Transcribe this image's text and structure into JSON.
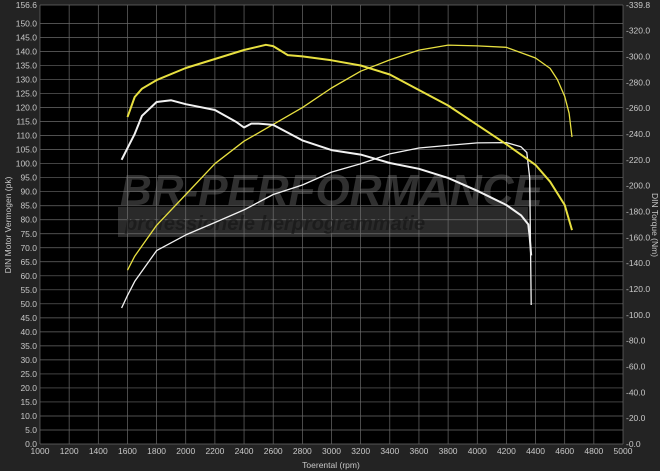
{
  "chart_data": {
    "type": "line",
    "xlabel": "Toerental (rpm)",
    "ylabel": "DIN Motor Vermogen (pk)",
    "y2label": "DIN Torque (Nm)",
    "xlim": [
      1000,
      5000
    ],
    "ylim": [
      0,
      156.6
    ],
    "y2lim": [
      0,
      339.8
    ],
    "xticks": [
      1000,
      1200,
      1400,
      1600,
      1800,
      2000,
      2200,
      2400,
      2600,
      2800,
      3000,
      3200,
      3400,
      3600,
      3800,
      4000,
      4200,
      4400,
      4600,
      4800,
      5000
    ],
    "yticks": [
      "0.0",
      "5.0",
      "10.0",
      "15.0",
      "20.0",
      "25.0",
      "30.0",
      "35.0",
      "40.0",
      "45.0",
      "50.0",
      "55.0",
      "60.0",
      "65.0",
      "70.0",
      "75.0",
      "80.0",
      "85.0",
      "90.0",
      "95.0",
      "100.0",
      "105.0",
      "110.0",
      "115.0",
      "120.0",
      "125.0",
      "130.0",
      "135.0",
      "140.0",
      "145.0",
      "150.0",
      "156.6"
    ],
    "y2ticks": [
      "0.0",
      "20.0",
      "40.0",
      "60.0",
      "80.0",
      "100.0",
      "120.0",
      "140.0",
      "160.0",
      "180.0",
      "200.0",
      "220.0",
      "240.0",
      "260.0",
      "280.0",
      "300.0",
      "320.0",
      "339.8"
    ],
    "grid": true,
    "colors": {
      "tuned": "#e8e040",
      "stock": "#f2f2f2",
      "plot_bg": "#000000",
      "outer_bg": "#232323"
    },
    "series": [
      {
        "axis": "left",
        "color": "#e8e040",
        "x": [
          1600,
          1650,
          1800,
          2000,
          2200,
          2400,
          2600,
          2800,
          3000,
          3200,
          3400,
          3600,
          3800,
          4000,
          4200,
          4400,
          4500,
          4550,
          4600,
          4630,
          4650
        ],
        "y": [
          62,
          67,
          78,
          89,
          100,
          108,
          114,
          120,
          127,
          133,
          137,
          140.5,
          142.3,
          142,
          141.5,
          137.7,
          134,
          130,
          124,
          118,
          109.5
        ]
      },
      {
        "axis": "left",
        "color": "#f2f2f2",
        "x": [
          1560,
          1600,
          1650,
          1800,
          2000,
          2200,
          2400,
          2600,
          2800,
          3000,
          3200,
          3400,
          3600,
          3800,
          4000,
          4200,
          4300,
          4340,
          4360,
          4370
        ],
        "y": [
          48.5,
          53,
          58,
          69,
          74.6,
          79,
          83.5,
          89,
          92.4,
          97,
          100,
          103.5,
          105.6,
          106.5,
          107.4,
          107.5,
          106,
          104,
          95,
          49.6
        ]
      },
      {
        "axis": "right",
        "color": "#e8e040",
        "x": [
          1600,
          1650,
          1700,
          1800,
          2000,
          2200,
          2400,
          2550,
          2600,
          2700,
          2800,
          3000,
          3200,
          3400,
          3600,
          3800,
          4000,
          4200,
          4400,
          4500,
          4600,
          4650
        ],
        "y": [
          253,
          268.6,
          275,
          281.7,
          291,
          298,
          305,
          309,
          308,
          301,
          300,
          297,
          293,
          286,
          274,
          262,
          247,
          232,
          216,
          203,
          185,
          165.6
        ]
      },
      {
        "axis": "right",
        "color": "#f2f2f2",
        "x": [
          1560,
          1600,
          1650,
          1700,
          1800,
          1900,
          2000,
          2200,
          2350,
          2400,
          2450,
          2500,
          2600,
          2800,
          3000,
          3200,
          3400,
          3600,
          3800,
          4000,
          4200,
          4300,
          4350,
          4360,
          4370
        ],
        "y": [
          220,
          229,
          240,
          254,
          264.7,
          266,
          263,
          258.5,
          249,
          245,
          248,
          248,
          247,
          235,
          227.5,
          224,
          217.5,
          213,
          206,
          196,
          185,
          177,
          170,
          160,
          146
        ]
      }
    ]
  },
  "watermark": {
    "brand": "BR-PERFORMANCE",
    "tagline": "professionele herprogrammatie"
  }
}
